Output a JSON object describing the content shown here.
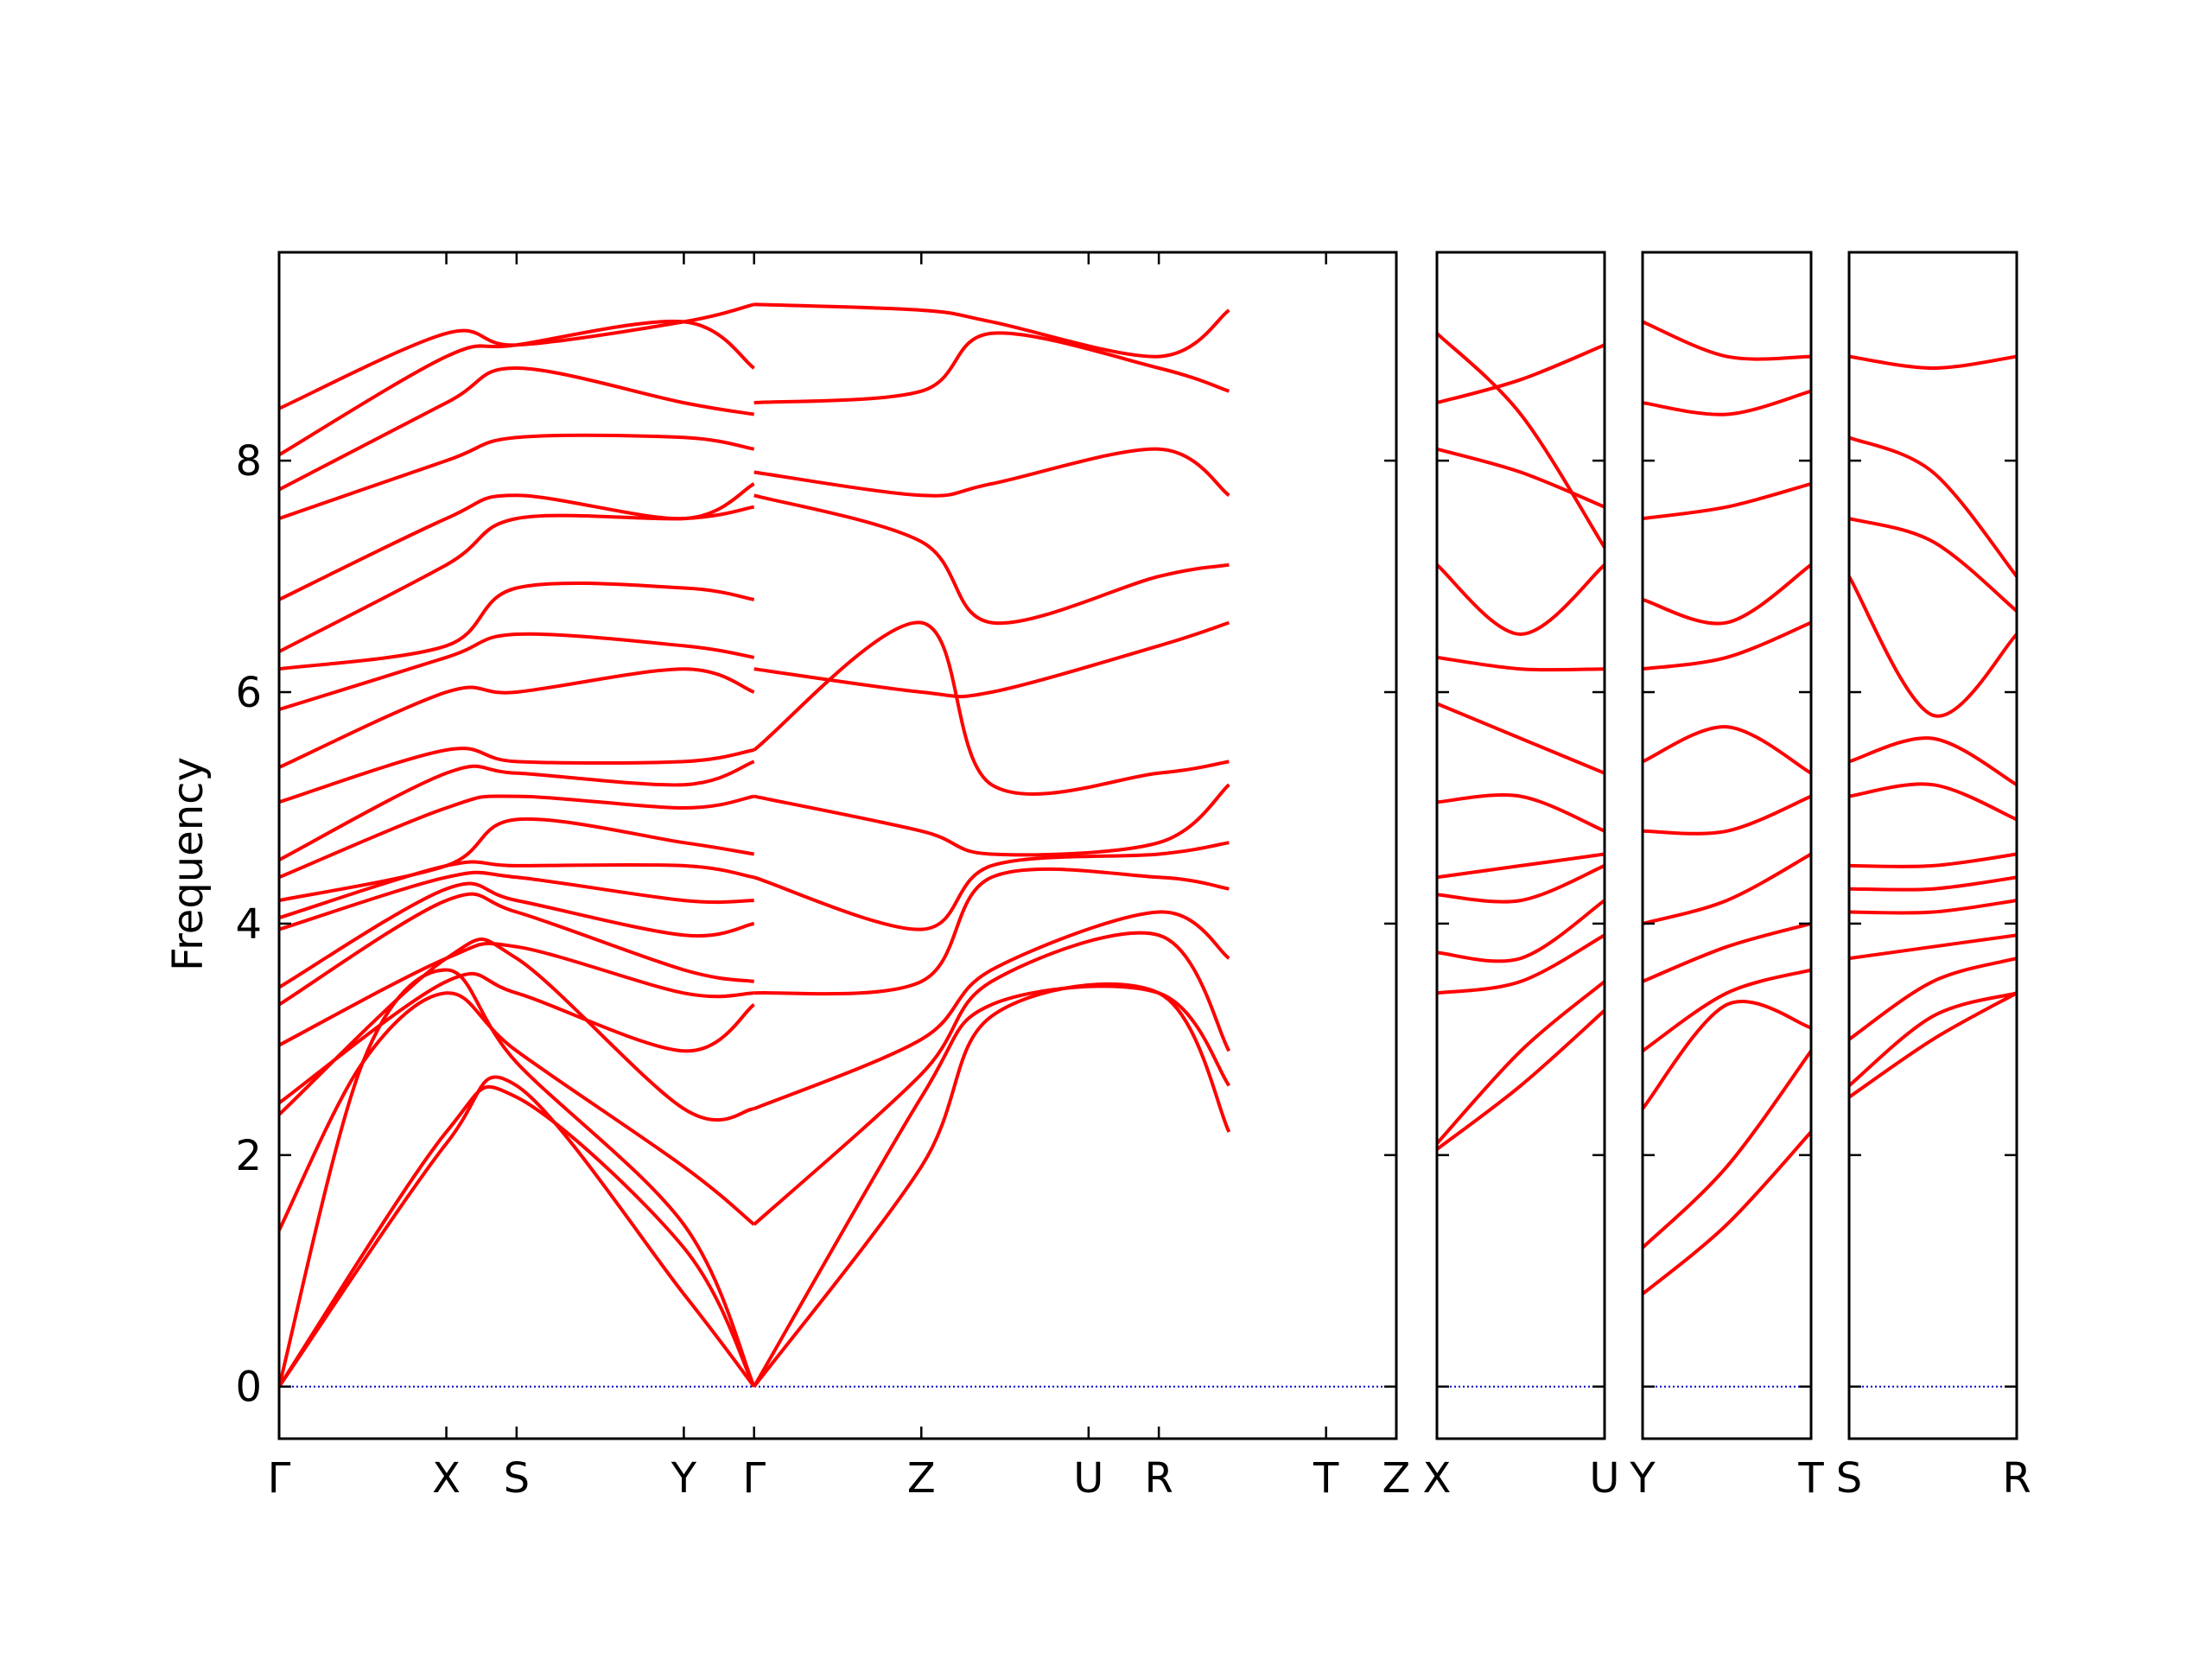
{
  "chart_data": {
    "type": "line",
    "title": "",
    "xlabel": "",
    "ylabel": "Frequency",
    "ylim": [
      -0.45,
      9.8
    ],
    "y_ticks": [
      0,
      2,
      4,
      6,
      8
    ],
    "grid": false,
    "line_color": "#ff0000",
    "zero_line_color": "#0000cc",
    "panels": [
      {
        "path": [
          "Γ",
          "X",
          "S",
          "Y",
          "Γ",
          "Z",
          "U",
          "R",
          "T",
          "Z"
        ],
        "segment_lengths": [
          1.0,
          0.42,
          1.0,
          0.42,
          1.0,
          1.0,
          0.42,
          1.0,
          0.42
        ],
        "series": [
          {
            "x": [
              0,
              1,
              1.42,
              2.42,
              2.84
            ],
            "y": [
              0,
              2.1,
              2.6,
              0.8,
              0
            ]
          },
          {
            "x": [
              0,
              1,
              1.42,
              2.42,
              2.84
            ],
            "y": [
              0,
              2.2,
              2.5,
              1.2,
              0
            ]
          },
          {
            "x": [
              0,
              0.5,
              1,
              1.42,
              2.42,
              2.84
            ],
            "y": [
              0,
              2.8,
              3.6,
              2.8,
              1.4,
              0
            ]
          },
          {
            "x": [
              0,
              0.5,
              1,
              1.42,
              2.42,
              2.84
            ],
            "y": [
              1.35,
              2.8,
              3.4,
              2.9,
              1.9,
              1.4
            ]
          },
          {
            "x": [
              0,
              1,
              1.42,
              2.42,
              2.84
            ],
            "y": [
              2.35,
              3.7,
              3.7,
              2.4,
              2.4
            ]
          },
          {
            "x": [
              0,
              1,
              1.42,
              2.42,
              2.84
            ],
            "y": [
              2.45,
              3.5,
              3.4,
              2.9,
              3.3
            ]
          },
          {
            "x": [
              0,
              1,
              1.42,
              2.42,
              2.84
            ],
            "y": [
              2.95,
              3.7,
              3.8,
              3.4,
              3.4
            ]
          },
          {
            "x": [
              0,
              1,
              1.42,
              2.42,
              2.84
            ],
            "y": [
              3.3,
              4.2,
              4.1,
              3.6,
              3.5
            ]
          },
          {
            "x": [
              0,
              1,
              1.42,
              2.42,
              2.84
            ],
            "y": [
              3.45,
              4.3,
              4.2,
              3.9,
              4.0
            ]
          },
          {
            "x": [
              0,
              1,
              1.42,
              2.42,
              2.84
            ],
            "y": [
              3.95,
              4.4,
              4.4,
              4.2,
              4.2
            ]
          },
          {
            "x": [
              0,
              1,
              1.42,
              2.42,
              2.84
            ],
            "y": [
              4.05,
              4.5,
              4.5,
              4.5,
              4.4
            ]
          },
          {
            "x": [
              0,
              1,
              1.42,
              2.42,
              2.84
            ],
            "y": [
              4.2,
              4.5,
              4.9,
              4.7,
              4.6
            ]
          },
          {
            "x": [
              0,
              1,
              1.42,
              2.42,
              2.84
            ],
            "y": [
              4.4,
              5.0,
              5.1,
              5.0,
              5.1
            ]
          },
          {
            "x": [
              0,
              1,
              1.42,
              2.42,
              2.84
            ],
            "y": [
              4.55,
              5.3,
              5.3,
              5.2,
              5.4
            ]
          },
          {
            "x": [
              0,
              1,
              1.42,
              2.42,
              2.84
            ],
            "y": [
              5.05,
              5.5,
              5.4,
              5.4,
              5.5
            ]
          },
          {
            "x": [
              0,
              1,
              1.42,
              2.42,
              2.84
            ],
            "y": [
              5.35,
              6.0,
              6.0,
              6.2,
              6.0
            ]
          },
          {
            "x": [
              0,
              1,
              1.42,
              2.42,
              2.84
            ],
            "y": [
              5.85,
              6.3,
              6.5,
              6.4,
              6.3
            ]
          },
          {
            "x": [
              0,
              1,
              1.42,
              2.42,
              2.84
            ],
            "y": [
              6.2,
              6.4,
              6.9,
              6.9,
              6.8
            ]
          },
          {
            "x": [
              0,
              1,
              1.42,
              2.42,
              2.84
            ],
            "y": [
              6.35,
              7.1,
              7.5,
              7.5,
              7.6
            ]
          },
          {
            "x": [
              0,
              1,
              1.42,
              2.42,
              2.84
            ],
            "y": [
              6.8,
              7.5,
              7.7,
              7.5,
              7.8
            ]
          },
          {
            "x": [
              0,
              1,
              1.42,
              2.42,
              2.84
            ],
            "y": [
              7.5,
              8.0,
              8.2,
              8.2,
              8.1
            ]
          },
          {
            "x": [
              0,
              1,
              1.42,
              2.42,
              2.84
            ],
            "y": [
              7.75,
              8.5,
              8.8,
              8.5,
              8.4
            ]
          },
          {
            "x": [
              0,
              1,
              1.42,
              2.42,
              2.84
            ],
            "y": [
              8.05,
              8.9,
              9.0,
              9.2,
              8.8
            ]
          },
          {
            "x": [
              0,
              1,
              1.42,
              2.42,
              2.84
            ],
            "y": [
              8.45,
              9.1,
              9.0,
              9.2,
              9.35
            ]
          },
          {
            "x": [
              2.84,
              3.84,
              4.26,
              5.26,
              5.68
            ],
            "y": [
              0,
              1.9,
              3.2,
              3.4,
              2.2
            ]
          },
          {
            "x": [
              2.84,
              3.84,
              4.26,
              5.26,
              5.68
            ],
            "y": [
              0,
              2.5,
              3.3,
              3.4,
              2.6
            ]
          },
          {
            "x": [
              2.84,
              3.84,
              4.26,
              5.26,
              5.68
            ],
            "y": [
              1.4,
              2.7,
              3.5,
              3.9,
              2.9
            ]
          },
          {
            "x": [
              2.84,
              3.84,
              4.26,
              5.26,
              5.68
            ],
            "y": [
              2.4,
              3.0,
              3.6,
              4.1,
              3.7
            ]
          },
          {
            "x": [
              2.84,
              3.84,
              4.26,
              5.26,
              5.68
            ],
            "y": [
              3.4,
              3.5,
              4.4,
              4.4,
              4.3
            ]
          },
          {
            "x": [
              2.84,
              3.84,
              4.26,
              5.26,
              5.68
            ],
            "y": [
              4.4,
              3.95,
              4.5,
              4.6,
              4.7
            ]
          },
          {
            "x": [
              2.84,
              3.84,
              4.26,
              5.26,
              5.68
            ],
            "y": [
              5.1,
              4.8,
              4.6,
              4.7,
              5.2
            ]
          },
          {
            "x": [
              2.84,
              3.84,
              4.26,
              5.26,
              5.68
            ],
            "y": [
              5.5,
              6.6,
              5.2,
              5.3,
              5.4
            ]
          },
          {
            "x": [
              2.84,
              3.84,
              4.26,
              5.26,
              5.68
            ],
            "y": [
              6.2,
              6.0,
              6.0,
              6.4,
              6.6
            ]
          },
          {
            "x": [
              2.84,
              3.84,
              4.26,
              5.26,
              5.68
            ],
            "y": [
              7.7,
              7.3,
              6.6,
              7.0,
              7.1
            ]
          },
          {
            "x": [
              2.84,
              3.84,
              4.26,
              5.26,
              5.68
            ],
            "y": [
              7.9,
              7.7,
              7.8,
              8.1,
              7.7
            ]
          },
          {
            "x": [
              2.84,
              3.84,
              4.26,
              5.26,
              5.68
            ],
            "y": [
              8.5,
              8.6,
              9.1,
              8.8,
              8.6
            ]
          },
          {
            "x": [
              2.84,
              3.84,
              4.26,
              5.26,
              5.68
            ],
            "y": [
              9.35,
              9.3,
              9.2,
              8.9,
              9.3
            ]
          }
        ]
      },
      {
        "path": [
          "X",
          "U"
        ],
        "segment_lengths": [
          1.0
        ],
        "series": [
          {
            "x": [
              0,
              0.5,
              1
            ],
            "y": [
              2.05,
              2.6,
              3.25
            ]
          },
          {
            "x": [
              0,
              0.5,
              1
            ],
            "y": [
              2.1,
              2.9,
              3.5
            ]
          },
          {
            "x": [
              0,
              0.5,
              1
            ],
            "y": [
              3.4,
              3.5,
              3.9
            ]
          },
          {
            "x": [
              0,
              0.5,
              1
            ],
            "y": [
              3.75,
              3.7,
              4.2
            ]
          },
          {
            "x": [
              0,
              0.5,
              1
            ],
            "y": [
              4.25,
              4.2,
              4.5
            ]
          },
          {
            "x": [
              0,
              0.5,
              1
            ],
            "y": [
              4.4,
              4.5,
              4.6
            ]
          },
          {
            "x": [
              0,
              0.5,
              1
            ],
            "y": [
              5.05,
              5.1,
              4.8
            ]
          },
          {
            "x": [
              0,
              0.5,
              1
            ],
            "y": [
              5.9,
              5.6,
              5.3
            ]
          },
          {
            "x": [
              0,
              0.5,
              1
            ],
            "y": [
              6.3,
              6.2,
              6.2
            ]
          },
          {
            "x": [
              0,
              0.5,
              1
            ],
            "y": [
              7.1,
              6.5,
              7.1
            ]
          },
          {
            "x": [
              0,
              0.5,
              1
            ],
            "y": [
              8.1,
              7.9,
              7.6
            ]
          },
          {
            "x": [
              0,
              0.5,
              1
            ],
            "y": [
              8.5,
              8.7,
              9.0
            ]
          },
          {
            "x": [
              0,
              0.5,
              1
            ],
            "y": [
              9.1,
              8.4,
              7.25
            ]
          }
        ]
      },
      {
        "path": [
          "Y",
          "T"
        ],
        "segment_lengths": [
          1.0
        ],
        "series": [
          {
            "x": [
              0,
              0.5,
              1
            ],
            "y": [
              0.8,
              1.4,
              2.2
            ]
          },
          {
            "x": [
              0,
              0.5,
              1
            ],
            "y": [
              1.2,
              1.9,
              2.9
            ]
          },
          {
            "x": [
              0,
              0.5,
              1
            ],
            "y": [
              2.4,
              3.3,
              3.1
            ]
          },
          {
            "x": [
              0,
              0.5,
              1
            ],
            "y": [
              2.9,
              3.4,
              3.6
            ]
          },
          {
            "x": [
              0,
              0.5,
              1
            ],
            "y": [
              3.5,
              3.8,
              4.0
            ]
          },
          {
            "x": [
              0,
              0.5,
              1
            ],
            "y": [
              4.0,
              4.2,
              4.6
            ]
          },
          {
            "x": [
              0,
              0.5,
              1
            ],
            "y": [
              4.8,
              4.8,
              5.1
            ]
          },
          {
            "x": [
              0,
              0.5,
              1
            ],
            "y": [
              5.4,
              5.7,
              5.3
            ]
          },
          {
            "x": [
              0,
              0.5,
              1
            ],
            "y": [
              6.2,
              6.3,
              6.6
            ]
          },
          {
            "x": [
              0,
              0.5,
              1
            ],
            "y": [
              6.8,
              6.6,
              7.1
            ]
          },
          {
            "x": [
              0,
              0.5,
              1
            ],
            "y": [
              7.5,
              7.6,
              7.8
            ]
          },
          {
            "x": [
              0,
              0.5,
              1
            ],
            "y": [
              8.5,
              8.4,
              8.6
            ]
          },
          {
            "x": [
              0,
              0.5,
              1
            ],
            "y": [
              9.2,
              8.9,
              8.9
            ]
          }
        ]
      },
      {
        "path": [
          "S",
          "R"
        ],
        "segment_lengths": [
          1.0
        ],
        "series": [
          {
            "x": [
              0,
              0.5,
              1
            ],
            "y": [
              2.5,
              3.0,
              3.4
            ]
          },
          {
            "x": [
              0,
              0.5,
              1
            ],
            "y": [
              2.6,
              3.2,
              3.4
            ]
          },
          {
            "x": [
              0,
              0.5,
              1
            ],
            "y": [
              3.0,
              3.5,
              3.7
            ]
          },
          {
            "x": [
              0,
              0.5,
              1
            ],
            "y": [
              3.7,
              3.8,
              3.9
            ]
          },
          {
            "x": [
              0,
              0.5,
              1
            ],
            "y": [
              4.1,
              4.1,
              4.2
            ]
          },
          {
            "x": [
              0,
              0.5,
              1
            ],
            "y": [
              4.3,
              4.3,
              4.4
            ]
          },
          {
            "x": [
              0,
              0.5,
              1
            ],
            "y": [
              4.5,
              4.5,
              4.6
            ]
          },
          {
            "x": [
              0,
              0.5,
              1
            ],
            "y": [
              5.1,
              5.2,
              4.9
            ]
          },
          {
            "x": [
              0,
              0.5,
              1
            ],
            "y": [
              5.4,
              5.6,
              5.2
            ]
          },
          {
            "x": [
              0,
              0.5,
              1
            ],
            "y": [
              7.0,
              5.8,
              6.5
            ]
          },
          {
            "x": [
              0,
              0.5,
              1
            ],
            "y": [
              7.5,
              7.3,
              6.7
            ]
          },
          {
            "x": [
              0,
              0.5,
              1
            ],
            "y": [
              8.2,
              7.9,
              7.0
            ]
          },
          {
            "x": [
              0,
              0.5,
              1
            ],
            "y": [
              8.9,
              8.8,
              8.9
            ]
          }
        ]
      }
    ]
  }
}
